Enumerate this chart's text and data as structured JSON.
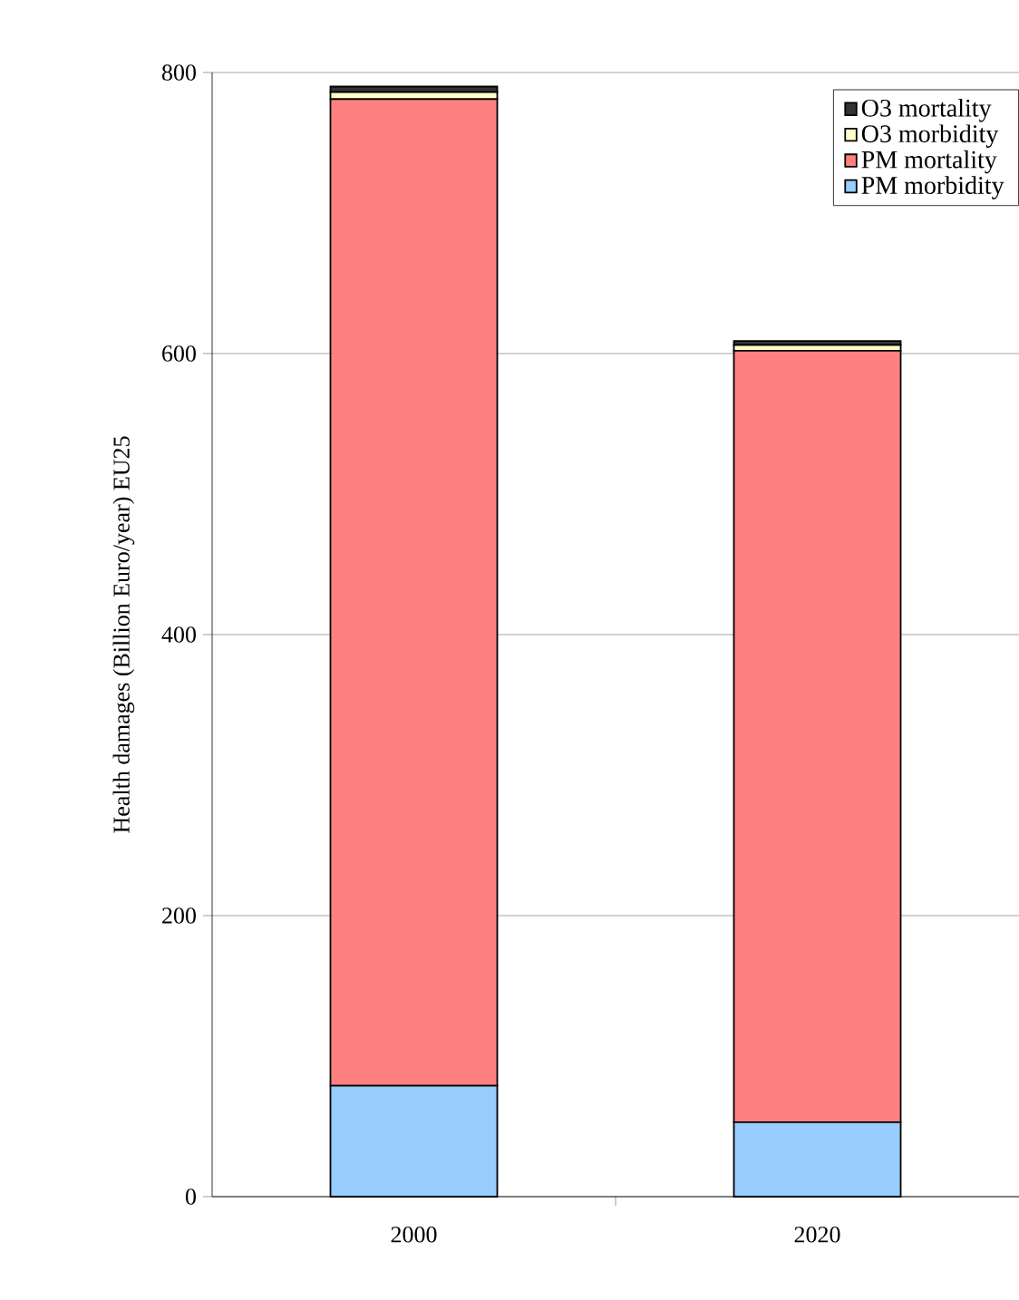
{
  "chart_data": {
    "type": "bar",
    "stacked": true,
    "ylabel": "Health damages (Billion Euro/year) EU25",
    "categories": [
      "2000",
      "2020"
    ],
    "series": [
      {
        "name": "PM morbidity",
        "color": "#99ccff",
        "values": [
          79,
          53
        ]
      },
      {
        "name": "PM mortality",
        "color": "#ff8080",
        "values": [
          702,
          549
        ]
      },
      {
        "name": "O3 morbidity",
        "color": "#ffffcc",
        "values": [
          5,
          4
        ]
      },
      {
        "name": "O3 mortality",
        "color": "#333333",
        "values": [
          4,
          3
        ]
      }
    ],
    "ylim": [
      0,
      800
    ],
    "yticks": [
      0,
      200,
      400,
      600,
      800
    ],
    "grid": "y",
    "legend": "top right"
  }
}
